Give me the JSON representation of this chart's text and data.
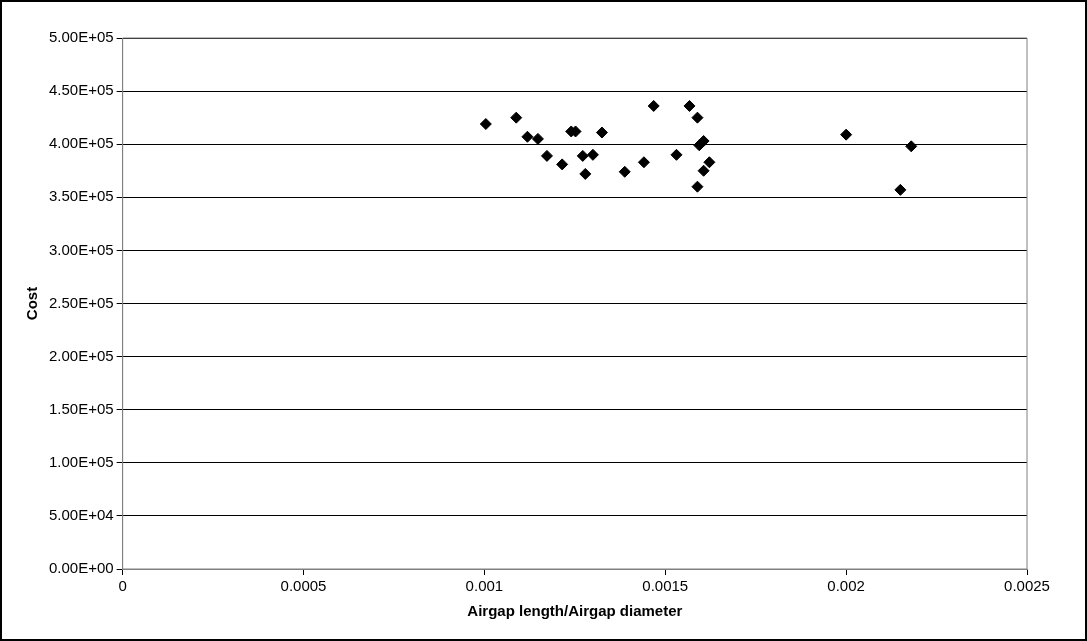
{
  "chart_data": {
    "type": "scatter",
    "xlabel": "Airgap length/Airgap diameter",
    "ylabel": "Cost",
    "x": [
      0.001004,
      0.001088,
      0.001119,
      0.001148,
      0.001173,
      0.001215,
      0.00124,
      0.001252,
      0.001272,
      0.001279,
      0.0013,
      0.001325,
      0.001388,
      0.001441,
      0.001468,
      0.001531,
      0.001567,
      0.001589,
      0.001594,
      0.001606,
      0.001622,
      0.001606,
      0.001589,
      0.002,
      0.00215,
      0.00218
    ],
    "series": [
      {
        "color": "#000000",
        "values": [
          419000,
          425000,
          407000,
          405000,
          389000,
          381000,
          412000,
          412000,
          389000,
          372000,
          390000,
          411000,
          374000,
          383000,
          436000,
          390000,
          436000,
          425000,
          399000,
          403000,
          383000,
          375000,
          360000,
          409000,
          357000,
          398000
        ]
      }
    ],
    "xlim": [
      0,
      0.0025
    ],
    "xticks": [
      0,
      0.0005,
      0.001,
      0.0015,
      0.002,
      0.0025
    ],
    "ylim": [
      0,
      500000
    ],
    "yticks": [
      {
        "value": 0,
        "label": "0.00E+00"
      },
      {
        "value": 50000,
        "label": "5.00E+04"
      },
      {
        "value": 100000,
        "label": "1.00E+05"
      },
      {
        "value": 150000,
        "label": "1.50E+05"
      },
      {
        "value": 200000,
        "label": "2.00E+05"
      },
      {
        "value": 250000,
        "label": "2.50E+05"
      },
      {
        "value": 300000,
        "label": "3.00E+05"
      },
      {
        "value": 350000,
        "label": "3.50E+05"
      },
      {
        "value": 400000,
        "label": "4.00E+05"
      },
      {
        "value": 450000,
        "label": "4.50E+05"
      },
      {
        "value": 500000,
        "label": "5.00E+05"
      }
    ],
    "grid": "y",
    "legend": false,
    "marker": "diamond"
  }
}
